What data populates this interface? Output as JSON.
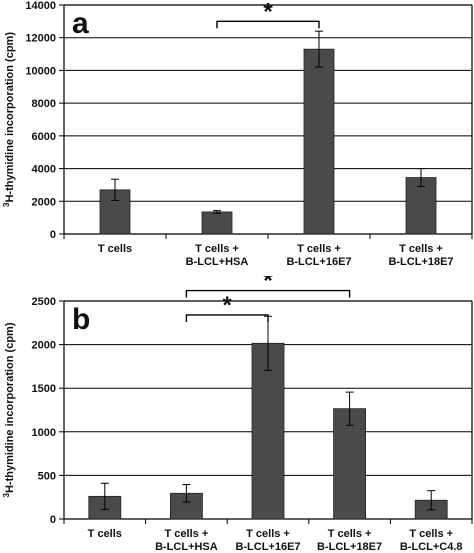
{
  "chart_data": [
    {
      "type": "bar",
      "panel_label": "a",
      "ylabel_prefix": "3",
      "ylabel": "H-thymidine incorporation (cpm)",
      "ylim": [
        0,
        14000
      ],
      "yticks": [
        "0",
        "2000",
        "4000",
        "6000",
        "8000",
        "10000",
        "12000",
        "14000"
      ],
      "grid": true,
      "categories": [
        [
          "T cells"
        ],
        [
          "T cells +",
          "B-LCL+HSA"
        ],
        [
          "T cells +",
          "B-LCL+16E7"
        ],
        [
          "T cells +",
          "B-LCL+18E7"
        ]
      ],
      "values": [
        2700,
        1350,
        11300,
        3450
      ],
      "errors": [
        650,
        80,
        1100,
        550
      ],
      "bar_color": "#4a4a4a",
      "significance": [
        {
          "from": 1,
          "to": 2,
          "label": "*",
          "level": 13000
        }
      ]
    },
    {
      "type": "bar",
      "panel_label": "b",
      "ylabel_prefix": "3",
      "ylabel": "H-thymidine incorporation (cpm)",
      "ylim": [
        0,
        2500
      ],
      "yticks": [
        "0",
        "500",
        "1000",
        "1500",
        "2000",
        "2500"
      ],
      "grid": true,
      "categories": [
        [
          "T cells"
        ],
        [
          "T cells +",
          "B-LCL+HSA"
        ],
        [
          "T cells +",
          "B-LCL+16E7"
        ],
        [
          "T cells +",
          "B-LCL+18E7"
        ],
        [
          "T cells +",
          "B-LCL+C4.8"
        ]
      ],
      "values": [
        260,
        295,
        2015,
        1265,
        215
      ],
      "errors": [
        150,
        100,
        310,
        190,
        110
      ],
      "bar_color": "#4a4a4a",
      "significance": [
        {
          "from": 1,
          "to": 3,
          "label": "*",
          "level": 2620
        },
        {
          "from": 1,
          "to": 2,
          "label": "*",
          "level": 2340
        }
      ]
    }
  ]
}
